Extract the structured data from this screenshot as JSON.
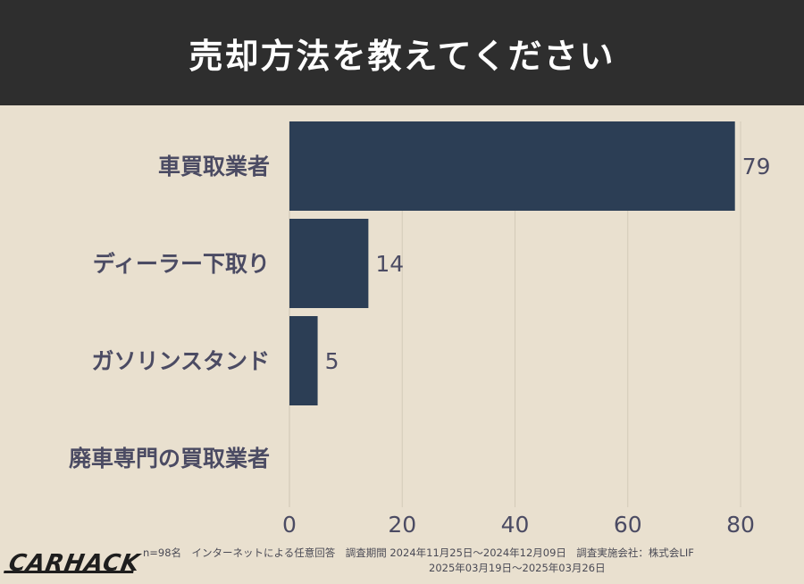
{
  "header": {
    "title": "売却方法を教えてください"
  },
  "chart_data": {
    "type": "bar",
    "orientation": "horizontal",
    "categories": [
      "車買取業者",
      "ディーラー下取り",
      "ガソリンスタンド",
      "廃車専門の買取業者"
    ],
    "values": [
      79,
      14,
      5,
      0
    ],
    "value_labels": [
      "79",
      "14",
      "5",
      ""
    ],
    "xlim": [
      0,
      80
    ],
    "xticks": [
      0,
      20,
      40,
      60,
      80
    ],
    "grid": true,
    "bar_color": "#2c3e55"
  },
  "footer": {
    "logo": "CARHACK",
    "note_line1": "n=98名　インターネットによる任意回答　調査期間  2024年11月25日〜2024年12月09日　調査実施会社：株式会LIF",
    "note_line2": "2025年03月19日〜2025年03月26日"
  }
}
